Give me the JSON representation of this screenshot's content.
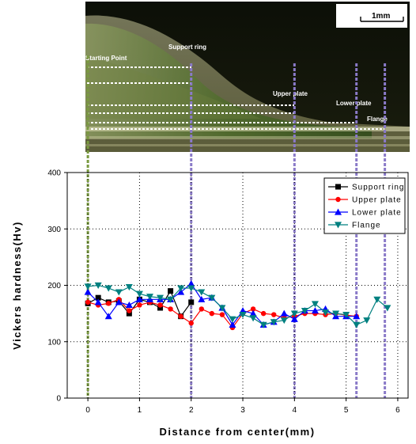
{
  "micrograph": {
    "scale_label": "1mm",
    "labels": {
      "starting_point": "Starting Point",
      "support_ring": "Support ring",
      "upper_plate": "Upper plate",
      "lower_plate": "Lower plate",
      "flange": "Flange"
    }
  },
  "chart_data": {
    "type": "line",
    "title": "",
    "xlabel": "Distance from center(mm)",
    "ylabel": "Vickers hardness(Hv)",
    "xlim": [
      -0.4,
      6.2
    ],
    "ylim": [
      0,
      400
    ],
    "xticks": [
      "0",
      "1",
      "2",
      "3",
      "4",
      "5",
      "6"
    ],
    "yticks": [
      "0",
      "100",
      "200",
      "300",
      "400"
    ],
    "grid": "dotted",
    "legend_position": "top-right",
    "vertical_markers": [
      0,
      2,
      4,
      5.2,
      5.75
    ],
    "series": [
      {
        "name": "Support ring",
        "color": "#000000",
        "marker": "square",
        "x": [
          0,
          0.2,
          0.4,
          0.6,
          0.8,
          1.0,
          1.2,
          1.4,
          1.6,
          1.8,
          2.0
        ],
        "y": [
          168,
          178,
          170,
          172,
          150,
          175,
          170,
          160,
          190,
          145,
          170
        ]
      },
      {
        "name": "Upper plate",
        "color": "#ff0000",
        "marker": "circle",
        "x": [
          0,
          0.2,
          0.4,
          0.6,
          0.8,
          1.0,
          1.2,
          1.4,
          1.6,
          1.8,
          2.0,
          2.2,
          2.4,
          2.6,
          2.8,
          3.0,
          3.2,
          3.4,
          3.6,
          3.8,
          4.0,
          4.2,
          4.4,
          4.6,
          4.8,
          5.0,
          5.2
        ],
        "y": [
          170,
          165,
          168,
          175,
          155,
          165,
          170,
          165,
          158,
          145,
          133,
          158,
          150,
          148,
          125,
          150,
          158,
          150,
          148,
          142,
          145,
          150,
          150,
          148,
          150,
          147,
          145
        ]
      },
      {
        "name": "Lower plate",
        "color": "#0000ff",
        "marker": "triangle-up",
        "x": [
          0,
          0.2,
          0.4,
          0.6,
          0.8,
          1.0,
          1.2,
          1.4,
          1.6,
          1.8,
          2.0,
          2.2,
          2.4,
          2.6,
          2.8,
          3.0,
          3.2,
          3.4,
          3.6,
          3.8,
          4.0,
          4.2,
          4.4,
          4.6,
          4.8,
          5.0,
          5.2
        ],
        "y": [
          188,
          170,
          145,
          170,
          165,
          175,
          175,
          175,
          175,
          188,
          203,
          175,
          178,
          160,
          130,
          155,
          150,
          130,
          135,
          150,
          140,
          155,
          155,
          158,
          145,
          145,
          145
        ]
      },
      {
        "name": "Flange",
        "color": "#008080",
        "marker": "triangle-down",
        "x": [
          0,
          0.2,
          0.4,
          0.6,
          0.8,
          1.0,
          1.2,
          1.4,
          1.6,
          1.8,
          2.0,
          2.2,
          2.4,
          2.6,
          2.8,
          3.0,
          3.2,
          3.4,
          3.6,
          3.8,
          4.0,
          4.2,
          4.4,
          4.6,
          4.8,
          5.0,
          5.2,
          5.4,
          5.6,
          5.8
        ],
        "y": [
          198,
          200,
          195,
          188,
          197,
          185,
          180,
          178,
          175,
          195,
          195,
          188,
          178,
          160,
          140,
          148,
          142,
          130,
          135,
          138,
          150,
          155,
          167,
          152,
          150,
          148,
          130,
          138,
          175,
          160
        ]
      }
    ]
  }
}
